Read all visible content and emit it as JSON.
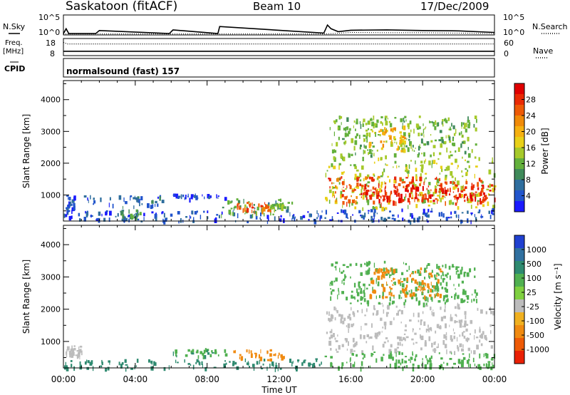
{
  "header": {
    "station": "Saskatoon (fitACF)",
    "beam": "Beam 10",
    "date": "17/Dec/2009"
  },
  "strip_labels": {
    "nsky": "N.Sky",
    "nsearch": "N.Search",
    "freq_line1": "Freq.",
    "freq_line2": "[MHz]",
    "nave": "Nave",
    "cpid": "CPID",
    "cpid_value": "normalsound (fast) 157"
  },
  "strip_ticks": {
    "noise_top": "10^5",
    "noise_bottom": "10^0",
    "freq_left": [
      "18",
      "8"
    ],
    "freq_right": [
      "60",
      "0"
    ]
  },
  "chart_data": [
    {
      "name": "noise",
      "type": "line",
      "x_unit": "hours UT",
      "y_scale": "log",
      "ylim": [
        1,
        100000
      ],
      "series": [
        {
          "name": "N.Sky",
          "style": "solid",
          "x": [
            0,
            0.15,
            0.3,
            1.8,
            2.0,
            5.9,
            6.1,
            8.6,
            8.7,
            14.5,
            14.7,
            14.9,
            15.3,
            16,
            18,
            20,
            22,
            24
          ],
          "y": [
            1.5,
            30,
            1.5,
            1.5,
            10,
            1.5,
            15,
            1.5,
            120,
            2,
            300,
            30,
            5,
            12,
            15,
            10,
            8,
            3
          ]
        },
        {
          "name": "N.Search",
          "style": "dotted",
          "x": [
            0,
            14.5,
            15,
            16,
            18,
            20,
            22,
            24
          ],
          "y": [
            1.2,
            1.2,
            1.5,
            3,
            2.5,
            2.5,
            2,
            1.5
          ]
        }
      ]
    },
    {
      "name": "frequency",
      "type": "line",
      "x_unit": "hours UT",
      "ylim": [
        8,
        18
      ],
      "y2lim": [
        0,
        60
      ],
      "series": [
        {
          "name": "Freq.",
          "style": "solid",
          "x": [
            0,
            24
          ],
          "y": [
            10.3,
            10.3
          ]
        },
        {
          "name": "Nave",
          "style": "dotted",
          "axis": "right",
          "x": [
            0,
            0.2,
            24
          ],
          "y": [
            48,
            42,
            42
          ]
        }
      ]
    },
    {
      "name": "power",
      "type": "heatmap",
      "xlabel": "",
      "ylabel": "Slant Range [km]",
      "x_ticks": [
        "00:00",
        "04:00",
        "08:00",
        "12:00",
        "16:00",
        "20:00",
        "00:00"
      ],
      "y_ticks": [
        "1000",
        "2000",
        "3000",
        "4000"
      ],
      "xlim": [
        0,
        24
      ],
      "ylim": [
        180,
        4600
      ],
      "colorbar": {
        "label": "Power [dB]",
        "ticks": [
          "4",
          "8",
          "12",
          "16",
          "20",
          "24",
          "28"
        ],
        "colors": [
          "#1a1aff",
          "#2255cc",
          "#2f6e9e",
          "#3f8a5a",
          "#63b03c",
          "#a6c92a",
          "#e8d018",
          "#f5b010",
          "#f08a08",
          "#ee5a06",
          "#ea2a04",
          "#e00000"
        ]
      },
      "echo_regions": [
        {
          "x0": 0,
          "x1": 14.4,
          "r0": 180,
          "r1": 520,
          "value": 6
        },
        {
          "x0": 0.1,
          "x1": 0.6,
          "r0": 500,
          "r1": 1000,
          "value": 6
        },
        {
          "x0": 1.0,
          "x1": 5.5,
          "r0": 650,
          "r1": 1000,
          "value": 7
        },
        {
          "x0": 3.0,
          "x1": 4.3,
          "r0": 300,
          "r1": 550,
          "value": 11
        },
        {
          "x0": 6.0,
          "x1": 9.0,
          "r0": 900,
          "r1": 1050,
          "value": 5
        },
        {
          "x0": 8.7,
          "x1": 12.7,
          "r0": 400,
          "r1": 900,
          "value": 12
        },
        {
          "x0": 9.6,
          "x1": 11.5,
          "r0": 520,
          "r1": 800,
          "value": 26
        },
        {
          "x0": 11.5,
          "x1": 12.3,
          "r0": 600,
          "r1": 750,
          "value": 14
        },
        {
          "x0": 14.4,
          "x1": 24,
          "r0": 200,
          "r1": 600,
          "value": 6
        },
        {
          "x0": 14.5,
          "x1": 24,
          "r0": 600,
          "r1": 2200,
          "value": 16
        },
        {
          "x0": 14.7,
          "x1": 23.5,
          "r0": 750,
          "r1": 1600,
          "value": 27
        },
        {
          "x0": 16.5,
          "x1": 24,
          "r0": 850,
          "r1": 1350,
          "value": 30
        },
        {
          "x0": 14.8,
          "x1": 23,
          "r0": 2200,
          "r1": 3500,
          "value": 14
        },
        {
          "x0": 17.0,
          "x1": 19.0,
          "r0": 2400,
          "r1": 3200,
          "value": 20
        }
      ]
    },
    {
      "name": "velocity",
      "type": "heatmap",
      "xlabel": "Time UT",
      "ylabel": "Slant Range [km]",
      "x_ticks": [
        "00:00",
        "04:00",
        "08:00",
        "12:00",
        "16:00",
        "20:00",
        "00:00"
      ],
      "y_ticks": [
        "1000",
        "2000",
        "3000",
        "4000"
      ],
      "xlim": [
        0,
        24
      ],
      "ylim": [
        180,
        4600
      ],
      "colorbar": {
        "label": "Velocity [m s⁻¹]",
        "ticks": [
          "1000",
          "500",
          "100",
          "25",
          "-25",
          "-100",
          "-500",
          "-1000"
        ],
        "colors": [
          "#2040d0",
          "#3070a0",
          "#2e8a70",
          "#50b050",
          "#7fd040",
          "#bcbcbc",
          "#f0b020",
          "#f08a10",
          "#ee5a06",
          "#ea2004"
        ]
      },
      "echo_regions": [
        {
          "x0": 0,
          "x1": 14.4,
          "r0": 180,
          "r1": 480,
          "value": 80
        },
        {
          "x0": 0,
          "x1": 1.0,
          "r0": 550,
          "r1": 900,
          "value": 0
        },
        {
          "x0": 6.0,
          "x1": 9.0,
          "r0": 550,
          "r1": 800,
          "value": 60
        },
        {
          "x0": 9.4,
          "x1": 12.3,
          "r0": 450,
          "r1": 800,
          "value": -120
        },
        {
          "x0": 14.5,
          "x1": 24,
          "r0": 700,
          "r1": 2200,
          "value": 0
        },
        {
          "x0": 14.5,
          "x1": 24,
          "r0": 200,
          "r1": 700,
          "value": 40
        },
        {
          "x0": 14.8,
          "x1": 23,
          "r0": 2200,
          "r1": 3500,
          "value": 40
        },
        {
          "x0": 17.0,
          "x1": 21.0,
          "r0": 2400,
          "r1": 3300,
          "value": -250
        }
      ]
    }
  ]
}
